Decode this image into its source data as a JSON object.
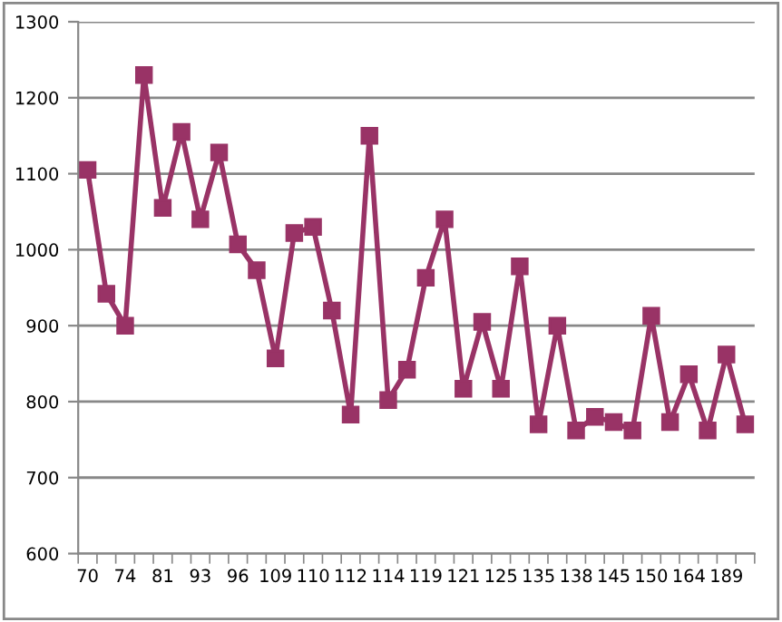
{
  "chart_data": {
    "type": "line",
    "categories": [
      "70",
      null,
      "74",
      null,
      "81",
      null,
      "93",
      null,
      "96",
      null,
      "109",
      null,
      "110",
      null,
      "112",
      null,
      "114",
      null,
      "119",
      null,
      "121",
      null,
      "125",
      null,
      "135",
      null,
      "138",
      null,
      "145",
      null,
      "150",
      null,
      "164",
      null,
      "189",
      null
    ],
    "series": [
      {
        "color": "#993366",
        "values": [
          1105,
          942,
          900,
          1230,
          1055,
          1155,
          1040,
          1128,
          1007,
          973,
          857,
          1022,
          1030,
          920,
          783,
          1150,
          802,
          842,
          963,
          1040,
          817,
          905,
          817,
          978,
          770,
          900,
          762,
          780,
          773,
          762,
          913,
          773,
          836,
          762,
          862,
          770
        ]
      }
    ],
    "ylim": [
      600,
      1300
    ],
    "yticks": [
      600,
      700,
      800,
      900,
      1000,
      1100,
      1200,
      1300
    ],
    "grid": "y",
    "marker": "square",
    "line_style": "solid",
    "legend": false
  }
}
